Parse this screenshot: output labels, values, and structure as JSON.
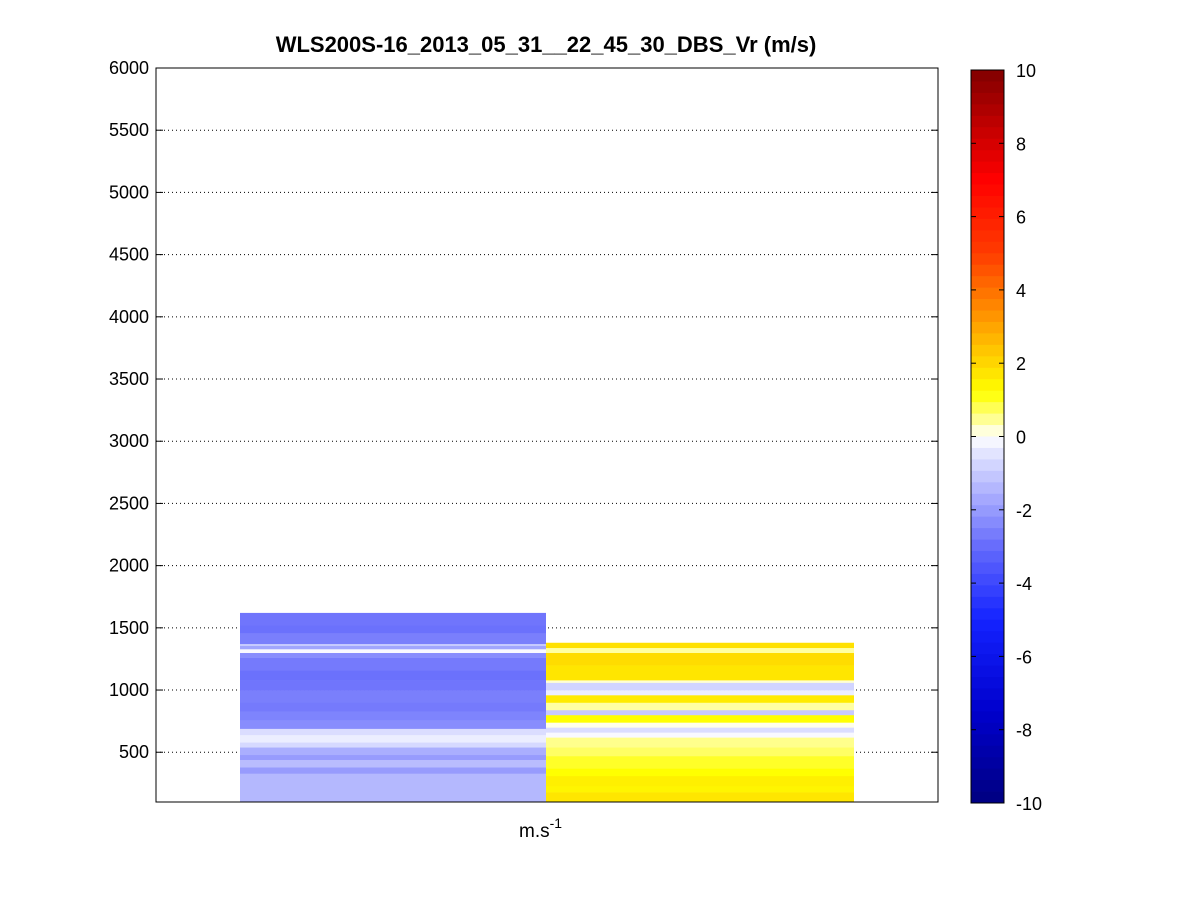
{
  "chart_data": {
    "type": "heatmap",
    "title": "WLS200S-16_2013_05_31__22_45_30_DBS_Vr (m/s)",
    "xlabel": "m.s",
    "xlabel_superscript": "-1",
    "ylabel": "",
    "ylim": [
      100,
      6000
    ],
    "yticks": [
      500,
      1000,
      1500,
      2000,
      2500,
      3000,
      3500,
      4000,
      4500,
      5000,
      5500,
      6000
    ],
    "grid": "horizontal dotted",
    "colorbar": {
      "position": "right",
      "colormap": "custom blue-white-yellow-red",
      "clim": [
        -10,
        10
      ],
      "ticks": [
        -10,
        -8,
        -6,
        -4,
        -2,
        0,
        2,
        4,
        6,
        8,
        10
      ]
    },
    "columns": [
      {
        "name": "",
        "range": [
          100,
          1620
        ],
        "cells": [
          [
            100,
            330,
            -1.4
          ],
          [
            330,
            380,
            -2.0
          ],
          [
            380,
            440,
            -1.3
          ],
          [
            440,
            480,
            -2.0
          ],
          [
            480,
            540,
            -1.6
          ],
          [
            540,
            580,
            -0.7
          ],
          [
            580,
            640,
            -0.3
          ],
          [
            640,
            690,
            -0.6
          ],
          [
            690,
            760,
            -2.3
          ],
          [
            760,
            830,
            -2.5
          ],
          [
            830,
            900,
            -2.7
          ],
          [
            900,
            1000,
            -2.6
          ],
          [
            1000,
            1080,
            -2.8
          ],
          [
            1080,
            1160,
            -2.9
          ],
          [
            1160,
            1260,
            -2.7
          ],
          [
            1260,
            1300,
            -2.3
          ],
          [
            1300,
            1330,
            -0.1
          ],
          [
            1330,
            1360,
            -1.8
          ],
          [
            1360,
            1370,
            -0.4
          ],
          [
            1370,
            1460,
            -2.6
          ],
          [
            1460,
            1520,
            -2.9
          ],
          [
            1520,
            1620,
            -2.8
          ]
        ]
      },
      {
        "name": "",
        "range": [
          100,
          1380
        ],
        "cells": [
          [
            100,
            180,
            1.7
          ],
          [
            180,
            230,
            1.4
          ],
          [
            230,
            310,
            1.5
          ],
          [
            310,
            370,
            1.2
          ],
          [
            370,
            470,
            1.0
          ],
          [
            470,
            540,
            0.7
          ],
          [
            540,
            620,
            0.5
          ],
          [
            620,
            660,
            -0.1
          ],
          [
            660,
            700,
            -0.6
          ],
          [
            700,
            740,
            0.1
          ],
          [
            740,
            800,
            1.2
          ],
          [
            800,
            840,
            -1.0
          ],
          [
            840,
            900,
            0.4
          ],
          [
            900,
            960,
            1.6
          ],
          [
            960,
            1000,
            -0.3
          ],
          [
            1000,
            1060,
            -0.8
          ],
          [
            1060,
            1080,
            0.2
          ],
          [
            1080,
            1200,
            1.7
          ],
          [
            1200,
            1300,
            1.9
          ],
          [
            1300,
            1340,
            0.4
          ],
          [
            1340,
            1380,
            1.8
          ]
        ]
      }
    ]
  }
}
